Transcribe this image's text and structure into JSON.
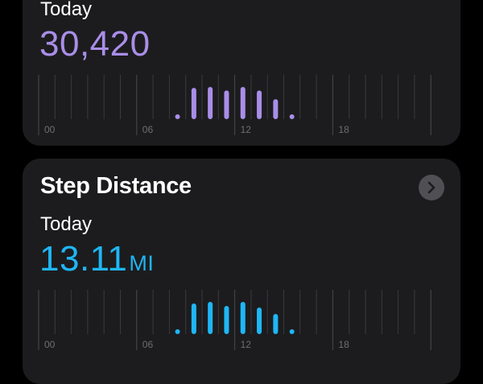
{
  "steps_card": {
    "period": "Today",
    "value": "30,420",
    "color": "#a98ee8",
    "chart_data": {
      "type": "bar",
      "x": [
        8,
        9,
        10,
        11,
        12,
        13,
        14,
        15
      ],
      "values": [
        400,
        5350,
        5500,
        4900,
        5500,
        4900,
        3400,
        470
      ],
      "xticks": [
        "00",
        "06",
        "12",
        "18"
      ],
      "xlim": [
        0,
        24
      ]
    }
  },
  "distance_card": {
    "title": "Step Distance",
    "period": "Today",
    "value": "13.11",
    "unit": "MI",
    "color": "#1fb6f5",
    "chevron_icon": "chevron-right-icon",
    "chart_data": {
      "type": "bar",
      "x": [
        8,
        9,
        10,
        11,
        12,
        13,
        14,
        15
      ],
      "values": [
        0.17,
        2.3,
        2.42,
        2.12,
        2.42,
        2.0,
        1.51,
        0.17
      ],
      "xticks": [
        "00",
        "06",
        "12",
        "18"
      ],
      "xlim": [
        0,
        24
      ]
    }
  }
}
